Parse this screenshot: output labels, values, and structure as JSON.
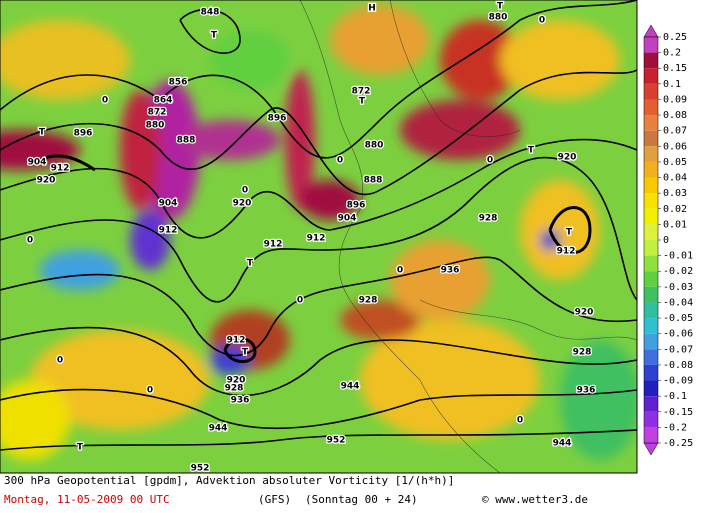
{
  "map": {
    "footer": {
      "title": "300 hPa Geopotential [gpdm], Advektion absoluter Vorticity [1/(h*h)]",
      "date": "Montag, 11-05-2009  00 UTC",
      "model": "(GFS)",
      "run": "(Sonntag 00 + 24)",
      "credit": "© www.wetter3.de"
    },
    "labels": [
      "848",
      "T",
      "856",
      "864",
      "872",
      "880",
      "888",
      "896",
      "T",
      "896",
      "904",
      "912",
      "920",
      "904",
      "912",
      "920",
      "912",
      "912",
      "T",
      "904",
      "896",
      "888",
      "880",
      "872",
      "T",
      "H",
      "880",
      "T",
      "T",
      "920",
      "928",
      "936",
      "928",
      "T",
      "912",
      "920",
      "928",
      "936",
      "944",
      "912",
      "T",
      "920",
      "928",
      "936",
      "944",
      "944",
      "952",
      "952",
      "T",
      "0",
      "0",
      "0",
      "0",
      "0",
      "0",
      "0",
      "0",
      "0",
      "0",
      "0"
    ],
    "colorbar": {
      "ticks": [
        0.25,
        0.2,
        0.15,
        0.1,
        0.09,
        0.08,
        0.07,
        0.06,
        0.05,
        0.04,
        0.03,
        0.02,
        0.01,
        0,
        -0.01,
        -0.02,
        -0.03,
        -0.04,
        -0.05,
        -0.06,
        -0.07,
        -0.08,
        -0.09,
        -0.1,
        -0.15,
        -0.2,
        -0.25
      ],
      "colors": [
        "#c040c0",
        "#a0103a",
        "#c82030",
        "#d84030",
        "#e06030",
        "#e88040",
        "#c87840",
        "#e0a040",
        "#f0b020",
        "#f8c800",
        "#f8e000",
        "#f0f000",
        "#e0f040",
        "#c0f040",
        "#90e040",
        "#60d040",
        "#40c060",
        "#30c0a0",
        "#30c0d0",
        "#40a0e0",
        "#4070e0",
        "#3040d0",
        "#2020c0",
        "#6020d0",
        "#9030e0",
        "#c040e0"
      ]
    }
  }
}
